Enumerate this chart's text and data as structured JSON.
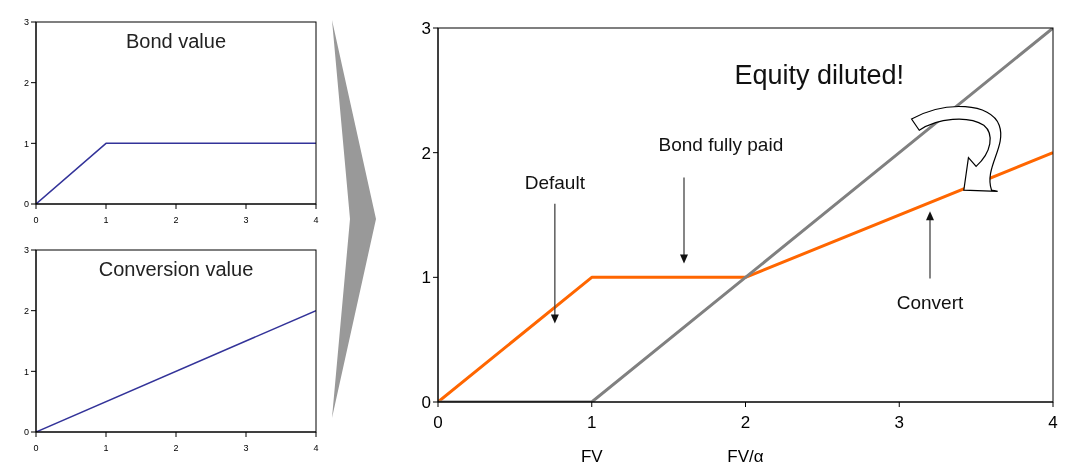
{
  "chart_data": [
    {
      "type": "line",
      "title": "Bond value",
      "xlim": [
        0,
        4
      ],
      "xticks": [
        0,
        1,
        2,
        3,
        4
      ],
      "ylim": [
        0,
        3
      ],
      "yticks": [
        0,
        1,
        2,
        3
      ],
      "grid": false,
      "marker": "none",
      "line_style": "solid",
      "series": [
        {
          "color": "#333399",
          "x": [
            0,
            1,
            4
          ],
          "values": [
            0,
            1,
            1
          ]
        }
      ]
    },
    {
      "type": "line",
      "title": "Conversion value",
      "xlim": [
        0,
        4
      ],
      "xticks": [
        0,
        1,
        2,
        3,
        4
      ],
      "ylim": [
        0,
        3
      ],
      "yticks": [
        0,
        1,
        2,
        3
      ],
      "grid": false,
      "marker": "none",
      "line_style": "solid",
      "series": [
        {
          "color": "#333399",
          "x": [
            0,
            4
          ],
          "values": [
            0,
            2
          ]
        }
      ]
    },
    {
      "type": "line",
      "xlim": [
        0,
        4
      ],
      "xticks": [
        0,
        {
          "value": 1,
          "label": "1\nFV"
        },
        {
          "value": 2,
          "label": "2\nFV/α"
        },
        3,
        4
      ],
      "ylim": [
        0,
        3
      ],
      "yticks": [
        0,
        1,
        2,
        3
      ],
      "grid": false,
      "marker": "none",
      "line_style": "solid",
      "series": [
        {
          "color": "#ff6600",
          "x": [
            0,
            1,
            2,
            4
          ],
          "values": [
            0,
            1,
            1,
            2
          ]
        },
        {
          "color": "#808080",
          "x": [
            0,
            1,
            4
          ],
          "values": [
            0,
            0,
            3
          ]
        }
      ],
      "annotations": [
        "Equity diluted!",
        "Default",
        "Bond fully paid",
        "Convert"
      ]
    }
  ]
}
